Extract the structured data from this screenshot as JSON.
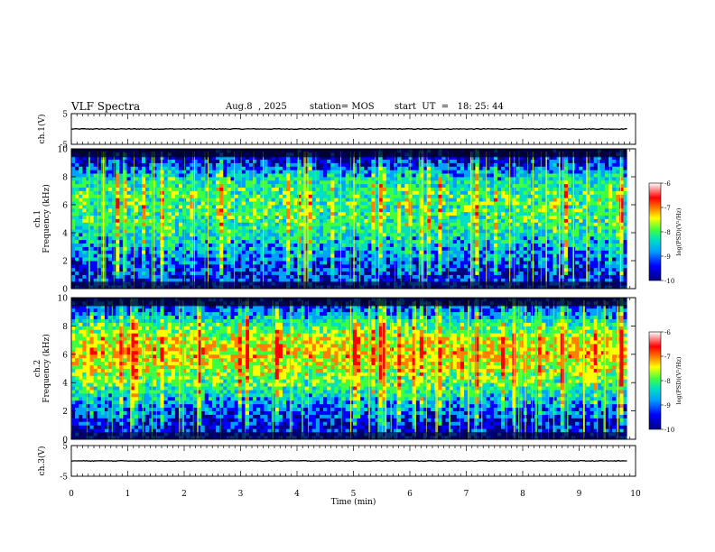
{
  "header": {
    "title": "VLF Spectra",
    "date": "Aug.8  , 2025",
    "station": "station= MOS",
    "start": "start  UT  =   18: 25: 44"
  },
  "colors": {
    "spectrum": [
      "#000080",
      "#0000ff",
      "#00a0ff",
      "#00e0c0",
      "#40ff40",
      "#ffff00",
      "#ff8000",
      "#ff0000",
      "#ffffff"
    ]
  },
  "chart_data": [
    {
      "type": "line",
      "panel": "ch1-waveform",
      "ylabel": "ch.1(V)",
      "ylim": [
        -5,
        5
      ],
      "yticks": [
        "5",
        "-5"
      ],
      "x": [
        0,
        10
      ],
      "values": [
        0,
        0
      ],
      "xlim": [
        0,
        10
      ]
    },
    {
      "type": "heatmap",
      "panel": "ch1-spectrogram",
      "ylabel": "ch.1\nFrequency (kHz)",
      "ylim": [
        0,
        10
      ],
      "yticks": [
        "0",
        "2",
        "4",
        "6",
        "8",
        "10"
      ],
      "xlim": [
        0,
        10
      ],
      "data_end_min": 9.85,
      "colorbar": {
        "label": "log(PSD)(V²/Hz)",
        "ticks": [
          "-6",
          "-7",
          "-8",
          "-9",
          "-10"
        ],
        "range": [
          -10,
          -6
        ]
      },
      "intensity_profile_khz": [
        0,
        1,
        2,
        3,
        4,
        5,
        6,
        7,
        8,
        9,
        10
      ],
      "intensity_profile_log_psd": [
        -9.2,
        -9.4,
        -9.0,
        -8.6,
        -8.3,
        -8.0,
        -7.9,
        -8.0,
        -8.4,
        -9.4,
        -10
      ]
    },
    {
      "type": "heatmap",
      "panel": "ch2-spectrogram",
      "ylabel": "ch.2\nFrequency (kHz)",
      "ylim": [
        0,
        10
      ],
      "yticks": [
        "0",
        "2",
        "4",
        "6",
        "8",
        "10"
      ],
      "xlim": [
        0,
        10
      ],
      "data_end_min": 9.85,
      "colorbar": {
        "label": "log(PSD)(V²/Hz)",
        "ticks": [
          "-6",
          "-7",
          "-8",
          "-9",
          "-10"
        ],
        "range": [
          -10,
          -6
        ]
      },
      "intensity_profile_khz": [
        0,
        1,
        2,
        3,
        4,
        5,
        6,
        7,
        8,
        9,
        10
      ],
      "intensity_profile_log_psd": [
        -9.3,
        -9.5,
        -9.0,
        -8.4,
        -7.9,
        -7.4,
        -7.1,
        -7.3,
        -7.9,
        -8.9,
        -9.6
      ]
    },
    {
      "type": "line",
      "panel": "ch3-waveform",
      "ylabel": "ch.3(V)",
      "ylim": [
        -5,
        5
      ],
      "yticks": [
        "5",
        "-5"
      ],
      "x": [
        0,
        10
      ],
      "values": [
        0,
        0
      ],
      "xlim": [
        0,
        10
      ]
    }
  ],
  "xaxis": {
    "label": "Time  (min)",
    "ticks": [
      "0",
      "1",
      "2",
      "3",
      "4",
      "5",
      "6",
      "7",
      "8",
      "9",
      "10"
    ]
  }
}
